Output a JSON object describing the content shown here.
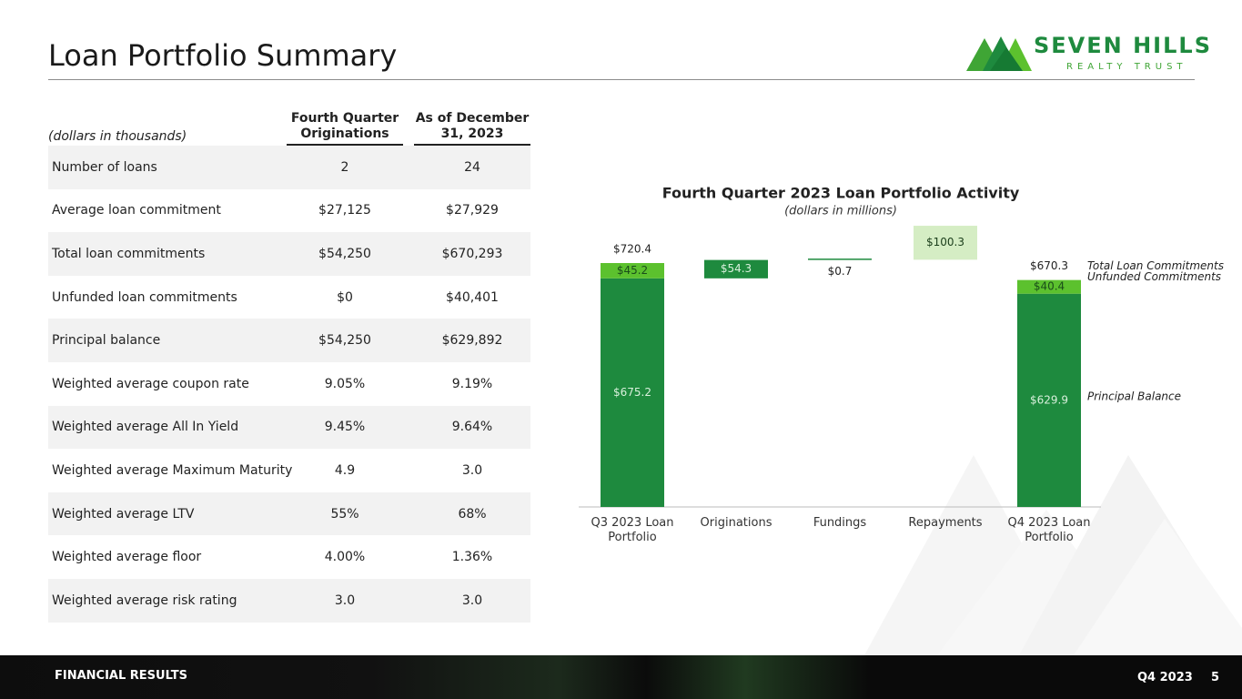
{
  "header": {
    "title": "Loan Portfolio Summary"
  },
  "logo": {
    "name": "SEVEN HILLS",
    "tagline": "REALTY TRUST"
  },
  "table": {
    "unit_note": "(dollars in thousands)",
    "columns": [
      "Fourth Quarter Originations",
      "As of December 31, 2023"
    ],
    "rows": [
      [
        "Number of loans",
        "2",
        "24"
      ],
      [
        "Average loan commitment",
        "$27,125",
        "$27,929"
      ],
      [
        "Total loan commitments",
        "$54,250",
        "$670,293"
      ],
      [
        "Unfunded loan commitments",
        "$0",
        "$40,401"
      ],
      [
        "Principal balance",
        "$54,250",
        "$629,892"
      ],
      [
        "Weighted average coupon rate",
        "9.05%",
        "9.19%"
      ],
      [
        "Weighted average All In Yield",
        "9.45%",
        "9.64%"
      ],
      [
        "Weighted average Maximum Maturity",
        "4.9",
        "3.0"
      ],
      [
        "Weighted average LTV",
        "55%",
        "68%"
      ],
      [
        "Weighted average floor",
        "4.00%",
        "1.36%"
      ],
      [
        "Weighted average risk rating",
        "3.0",
        "3.0"
      ]
    ]
  },
  "chart_data": {
    "type": "waterfall",
    "title": "Fourth Quarter 2023 Loan Portfolio Activity",
    "subtitle": "(dollars in millions)",
    "categories": [
      "Q3 2023 Loan Portfolio",
      "Originations",
      "Fundings",
      "Repayments",
      "Q4 2023 Loan Portfolio"
    ],
    "series": [
      {
        "name": "Principal Balance",
        "color": "#1e8a3e",
        "values": [
          675.2,
          null,
          null,
          null,
          629.9
        ],
        "value_labels": [
          "$675.2",
          null,
          null,
          null,
          "$629.9"
        ]
      },
      {
        "name": "Unfunded Commitments",
        "color": "#5cc12e",
        "values": [
          45.2,
          null,
          null,
          null,
          40.4
        ],
        "value_labels": [
          "$45.2",
          null,
          null,
          null,
          "$40.4"
        ]
      },
      {
        "name": "Total Loan Commitments",
        "values": [
          720.4,
          null,
          null,
          null,
          670.3
        ],
        "value_labels": [
          "$720.4",
          null,
          null,
          null,
          "$670.3"
        ]
      }
    ],
    "changes": {
      "values": [
        null,
        54.3,
        0.7,
        100.3,
        null
      ],
      "value_labels": [
        null,
        "$54.3",
        "$0.7",
        "$100.3",
        null
      ],
      "colors": [
        null,
        "#1e8a3e",
        "#1e8a3e",
        "#d5edc4",
        null
      ]
    }
  },
  "footer": {
    "section": "FINANCIAL RESULTS",
    "period": "Q4 2023",
    "page": "5"
  }
}
